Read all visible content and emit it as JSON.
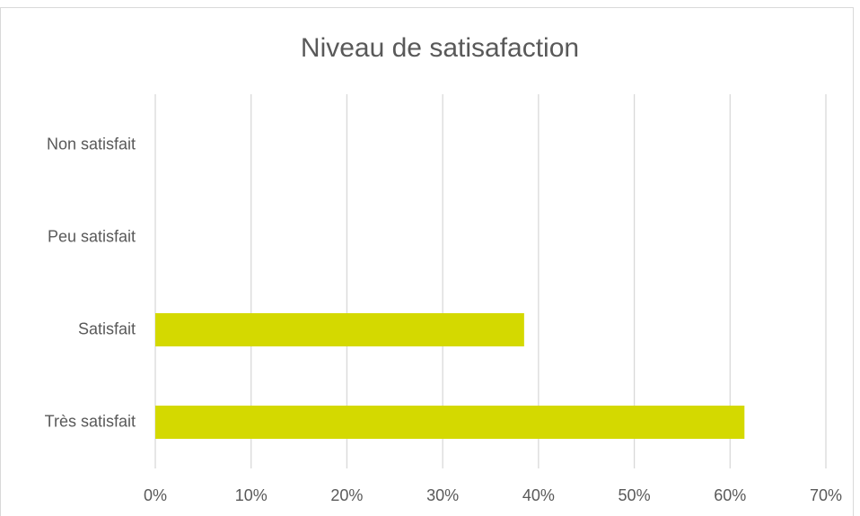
{
  "chart_data": {
    "type": "hbar",
    "title": "Niveau de satisafaction",
    "categories": [
      "Non satisfait",
      "Peu satisfait",
      "Satisfait",
      "Très satisfait"
    ],
    "values": [
      0,
      0,
      38.5,
      61.5
    ],
    "color": "#d4d900",
    "xlim": [
      0,
      70
    ],
    "xticks": [
      {
        "value": 0,
        "label": "0%"
      },
      {
        "value": 10,
        "label": "10%"
      },
      {
        "value": 20,
        "label": "20%"
      },
      {
        "value": 30,
        "label": "30%"
      },
      {
        "value": 40,
        "label": "40%"
      },
      {
        "value": 50,
        "label": "50%"
      },
      {
        "value": 60,
        "label": "60%"
      },
      {
        "value": 70,
        "label": "70%"
      }
    ],
    "grid": true
  }
}
